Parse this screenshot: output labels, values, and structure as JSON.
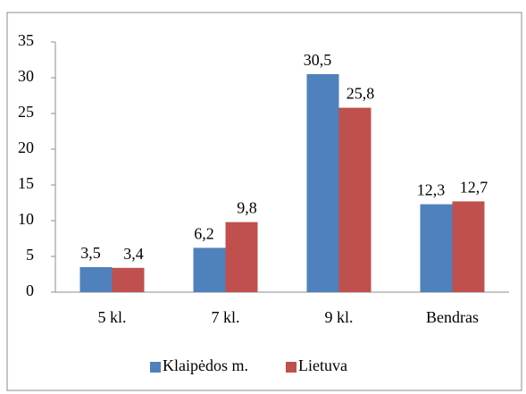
{
  "chart_data": {
    "type": "bar",
    "categories": [
      "5 kl.",
      "7 kl.",
      "9 kl.",
      "Bendras"
    ],
    "series": [
      {
        "name": "Klaipėdos m.",
        "color": "#4f81bd",
        "values": [
          3.5,
          6.2,
          30.5,
          12.3
        ],
        "value_labels": [
          "3,5",
          "6,2",
          "30,5",
          "12,3"
        ]
      },
      {
        "name": "Lietuva",
        "color": "#c0504d",
        "values": [
          3.4,
          9.8,
          25.8,
          12.7
        ],
        "value_labels": [
          "3,4",
          "9,8",
          "25,8",
          "12,7"
        ]
      }
    ],
    "ylim": [
      0,
      35
    ],
    "yticks": [
      0,
      5,
      10,
      15,
      20,
      25,
      30,
      35
    ],
    "grid": false,
    "legend": "bottom"
  }
}
